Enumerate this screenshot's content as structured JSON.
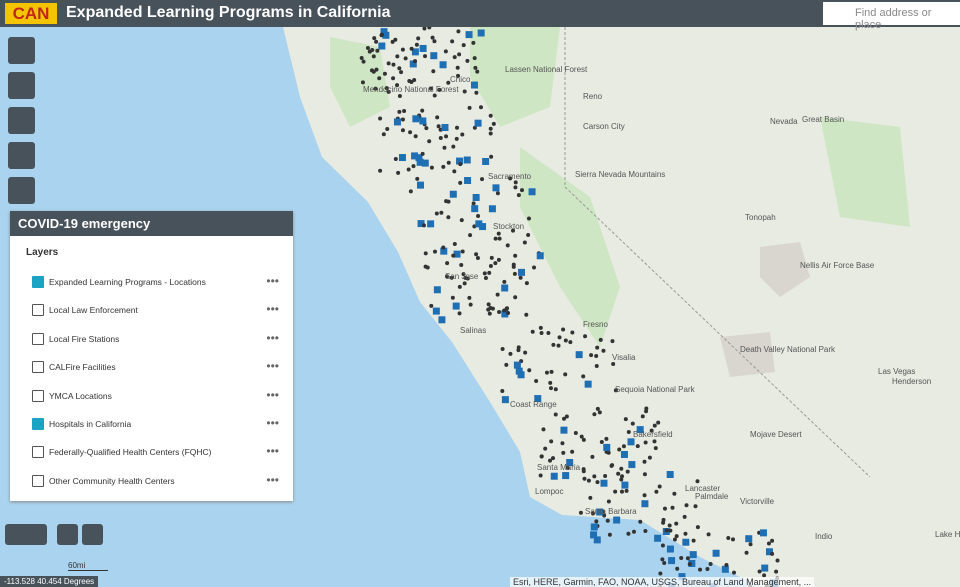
{
  "header": {
    "logo": "CAN",
    "title": "Expanded Learning Programs in California",
    "search_placeholder": "Find address or place"
  },
  "panel": {
    "title": "COVID-19 emergency",
    "section": "Layers",
    "layers": [
      {
        "label": "Expanded Learning Programs - Locations",
        "checked": true
      },
      {
        "label": "Local Law Enforcement",
        "checked": false
      },
      {
        "label": "Local Fire Stations",
        "checked": false
      },
      {
        "label": "CALFire Facilities",
        "checked": false
      },
      {
        "label": "YMCA Locations",
        "checked": false
      },
      {
        "label": "Hospitals in California",
        "checked": true
      },
      {
        "label": "Federally-Qualified Health Centers (FQHC)",
        "checked": false
      },
      {
        "label": "Other Community Health Centers",
        "checked": false
      }
    ]
  },
  "map": {
    "labels": [
      "Reno",
      "Carson City",
      "Nevada",
      "Great Basin",
      "Tonopah",
      "Nellis Air Force Base",
      "Death Valley National Park",
      "Las Vegas",
      "Henderson",
      "Mojave Desert",
      "Bakersfield",
      "Santa Maria",
      "Lompoc",
      "Santa Barbara",
      "Lancaster",
      "Palmdale",
      "Victorville",
      "Indio",
      "Lake Have",
      "San Jose",
      "Salinas",
      "Stockton",
      "Sacramento",
      "Fresno",
      "Visalia",
      "Sequoia National Park",
      "Coast Range",
      "Sierra Nevada Mountains",
      "Mendocino National Forest",
      "Lassen National Forest",
      "Chico"
    ],
    "coordinates": "-113.528 40.454 Degrees",
    "scale": "60mi",
    "attribution": "Esri, HERE, Garmin, FAO, NOAA, USGS, Bureau of Land Management, ..."
  }
}
